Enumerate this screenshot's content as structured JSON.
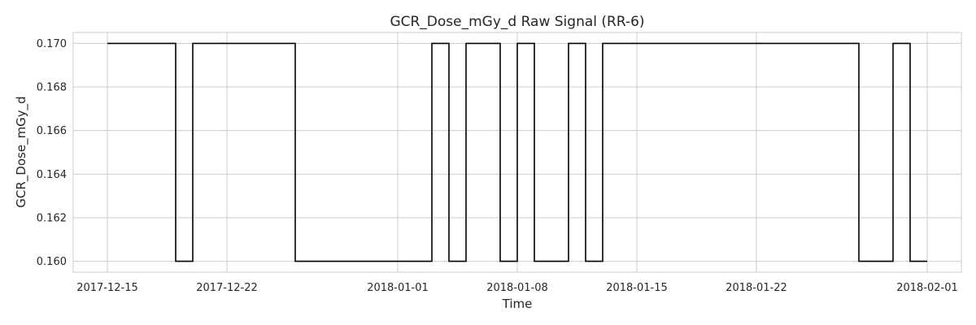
{
  "chart_data": {
    "type": "line",
    "step": true,
    "title": "GCR_Dose_mGy_d Raw Signal (RR-6)",
    "xlabel": "Time",
    "ylabel": "GCR_Dose_mGy_d",
    "xlim": [
      "2017-12-13",
      "2018-02-03"
    ],
    "ylim": [
      0.1595,
      0.1705
    ],
    "grid": true,
    "legend": "none",
    "line_color": "#000000",
    "x_ticks": [
      "2017-12-15",
      "2017-12-22",
      "2018-01-01",
      "2018-01-08",
      "2018-01-15",
      "2018-01-22",
      "2018-02-01"
    ],
    "y_ticks": [
      0.16,
      0.162,
      0.164,
      0.166,
      0.168,
      0.17
    ],
    "y_tick_labels": [
      "0.160",
      "0.162",
      "0.164",
      "0.166",
      "0.168",
      "0.170"
    ],
    "series": [
      {
        "x": [
          "2017-12-15",
          "2017-12-19",
          "2017-12-20",
          "2017-12-26",
          "2018-01-03",
          "2018-01-04",
          "2018-01-05",
          "2018-01-07",
          "2018-01-08",
          "2018-01-09",
          "2018-01-11",
          "2018-01-12",
          "2018-01-13",
          "2018-01-28",
          "2018-01-30",
          "2018-01-31",
          "2018-02-01"
        ],
        "values": [
          0.17,
          0.16,
          0.17,
          0.16,
          0.17,
          0.16,
          0.17,
          0.16,
          0.17,
          0.16,
          0.17,
          0.16,
          0.17,
          0.16,
          0.17,
          0.16,
          0.16
        ]
      }
    ]
  }
}
